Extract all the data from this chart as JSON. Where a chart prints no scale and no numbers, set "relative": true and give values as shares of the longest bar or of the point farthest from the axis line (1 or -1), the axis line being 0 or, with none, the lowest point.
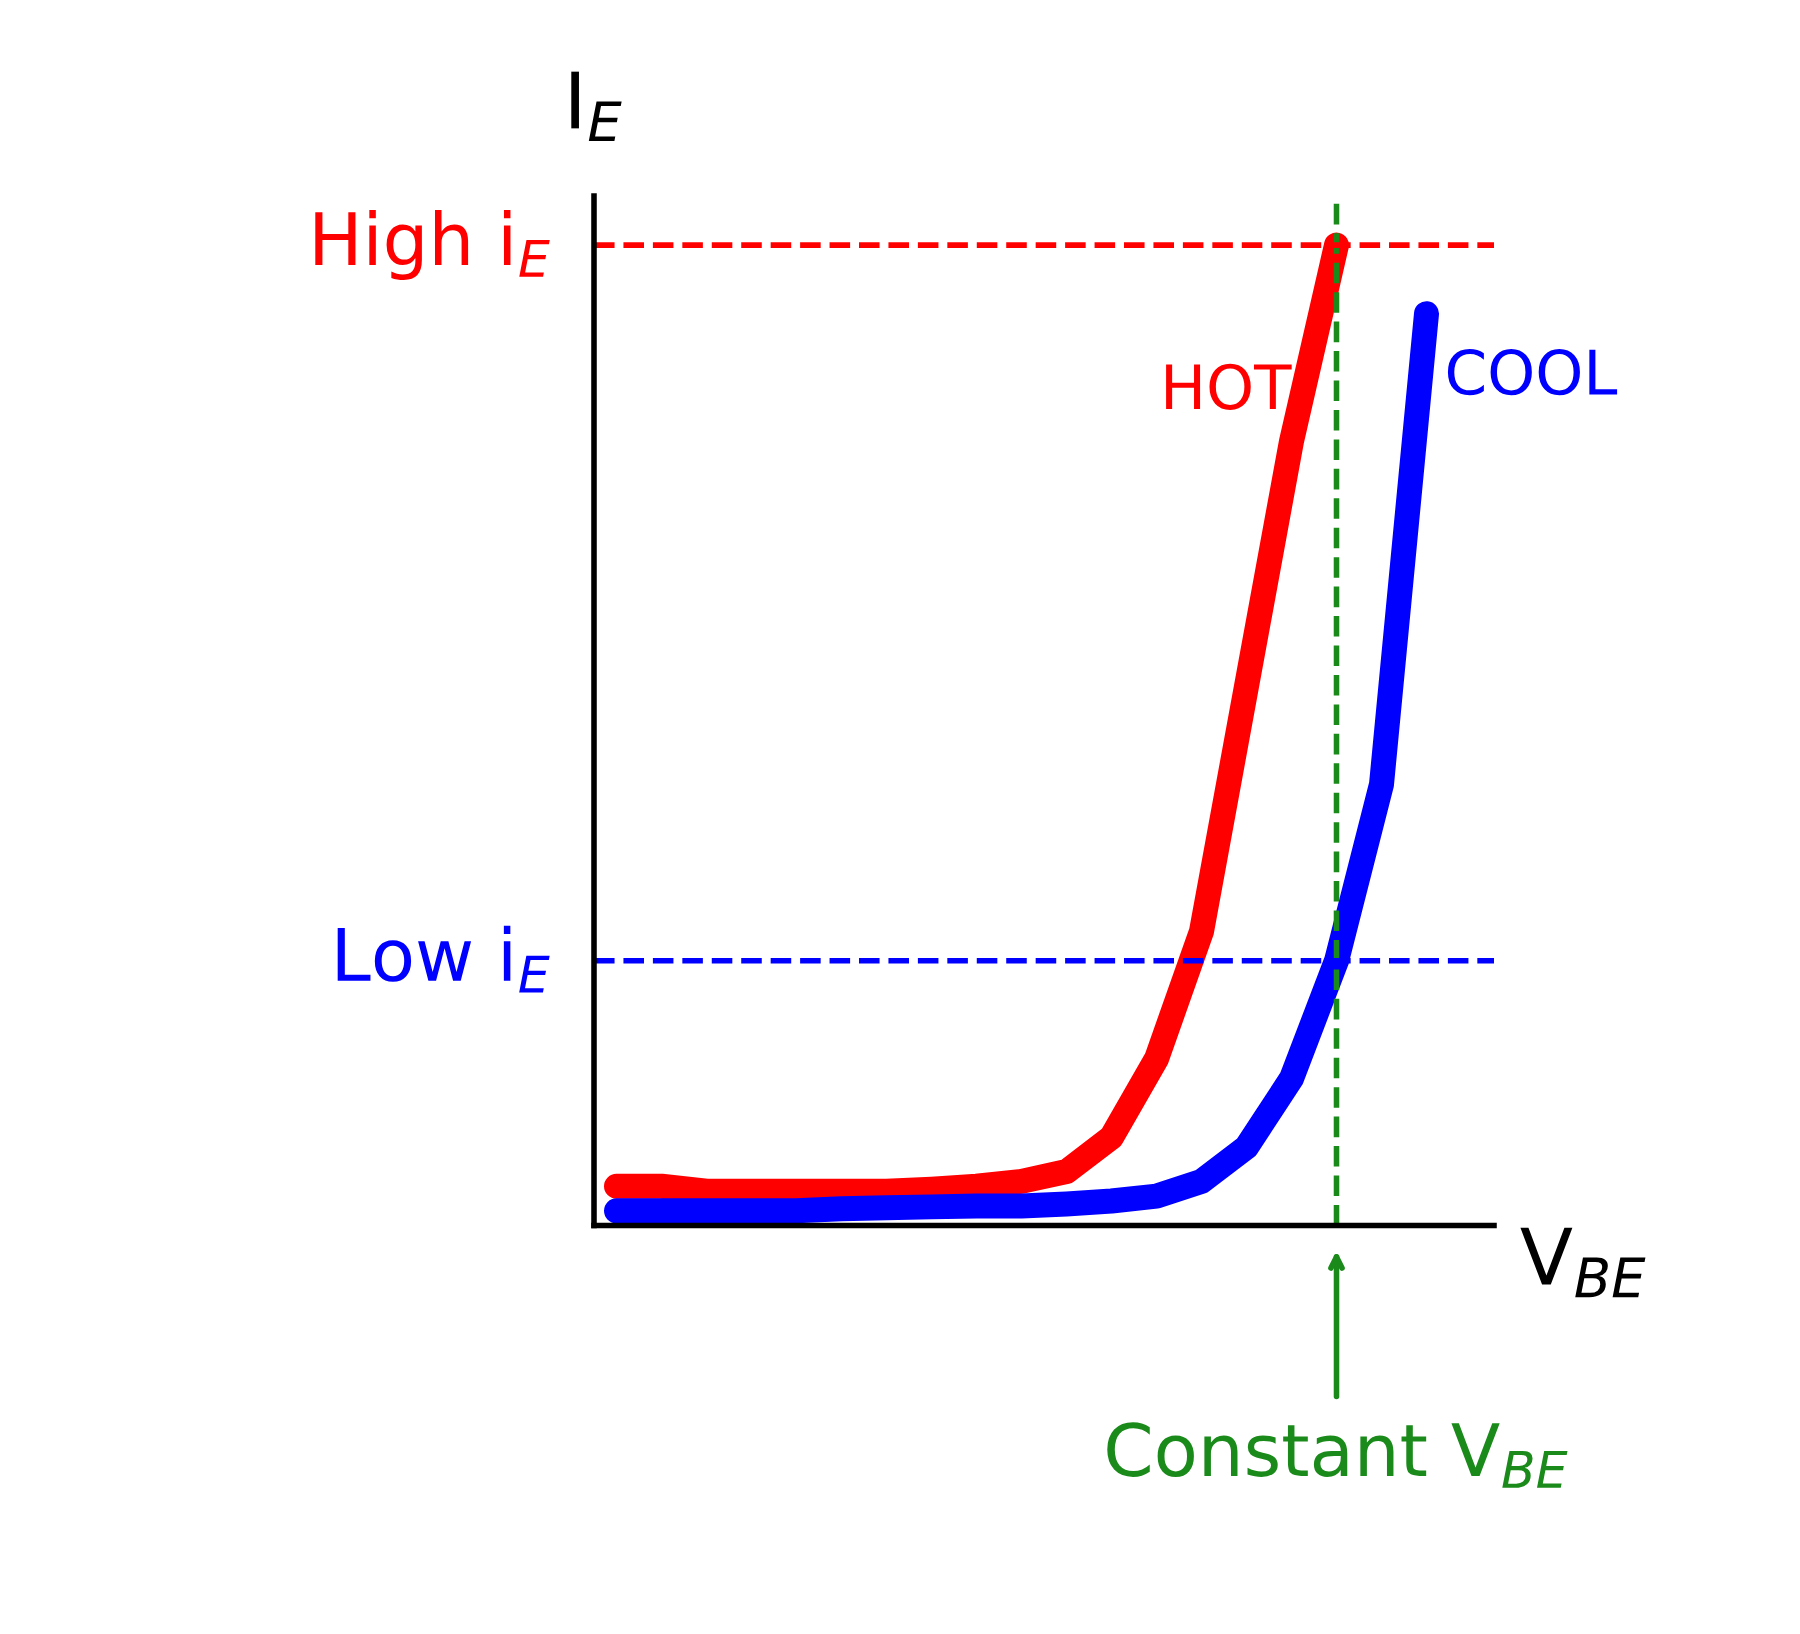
{
  "chart_data": {
    "type": "line",
    "relative": true,
    "xlabel": "V$_{BE}$",
    "ylabel": "I$_{E}$",
    "categories": [
      null,
      null,
      null,
      null,
      null,
      null,
      null,
      null,
      null,
      null,
      null,
      null,
      null,
      null,
      null,
      null,
      null,
      null,
      null
    ],
    "series": [
      {
        "name": "HOT",
        "color": "#ff0000",
        "values": [
          0.04,
          0.04,
          0.035,
          0.035,
          0.035,
          0.035,
          0.035,
          0.037,
          0.04,
          0.045,
          0.055,
          0.09,
          0.17,
          0.3,
          0.55,
          0.8,
          1.0,
          null,
          null
        ]
      },
      {
        "name": "COOL",
        "color": "#0000ff",
        "values": [
          0.015,
          0.015,
          0.015,
          0.015,
          0.015,
          0.017,
          0.018,
          0.019,
          0.02,
          0.02,
          0.022,
          0.025,
          0.03,
          0.045,
          0.08,
          0.15,
          0.27,
          0.45,
          0.93
        ]
      }
    ],
    "ref_lines": [
      {
        "axis": "y",
        "value": 1.0,
        "label": "High i$_{E}$",
        "color": "#ff0000",
        "line_style": "dashed"
      },
      {
        "axis": "y",
        "value": 0.27,
        "label": "Low i$_{E}$",
        "color": "#0000ff",
        "line_style": "dashed"
      }
    ],
    "annotations": [
      "Constant V$_{BE}$"
    ],
    "legend": false,
    "grid": false
  }
}
